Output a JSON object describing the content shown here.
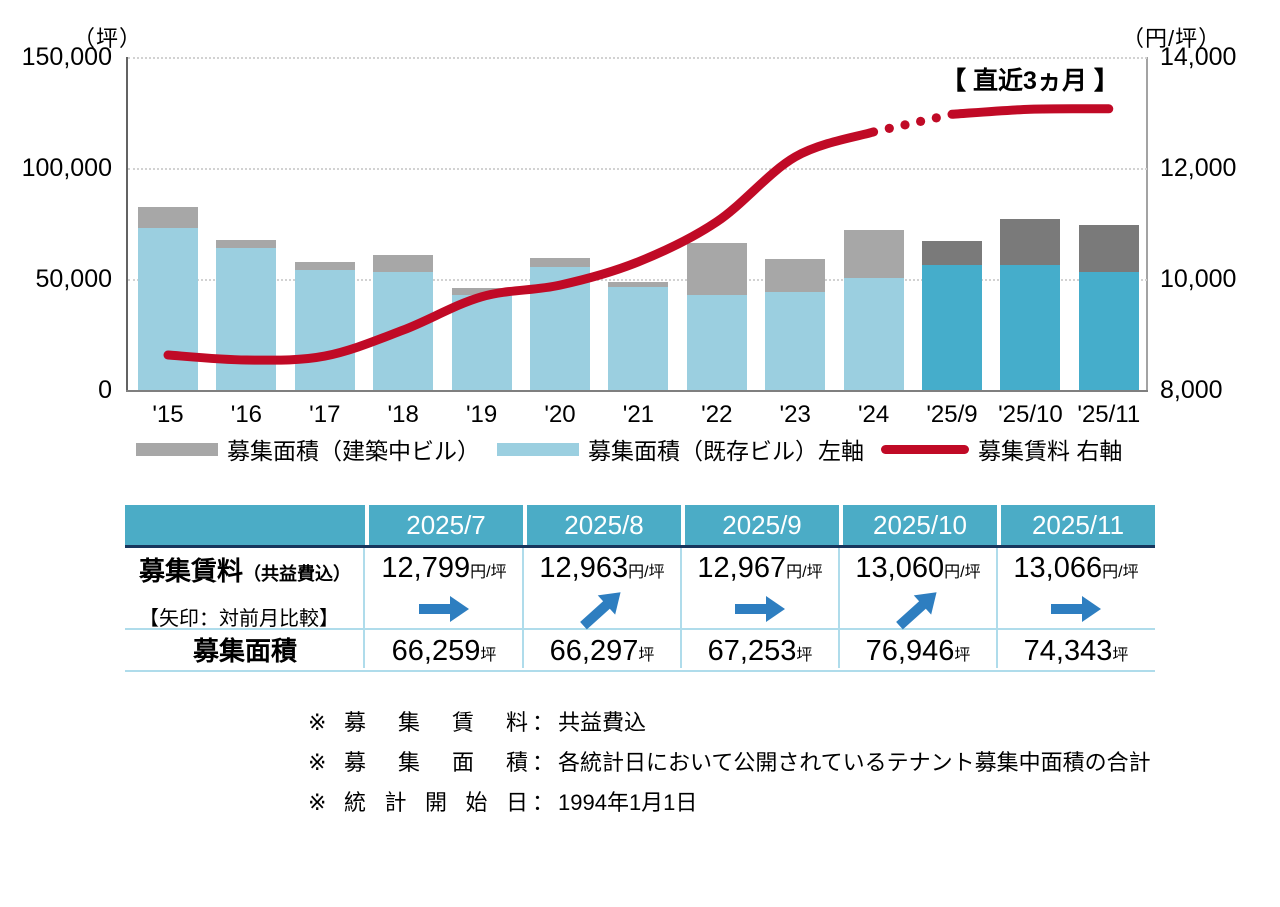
{
  "chart": {
    "left_axis": {
      "unit": "（坪）",
      "tick_labels": [
        "150,000",
        "100,000",
        "50,000",
        "0"
      ],
      "tick_values": [
        150000,
        100000,
        50000,
        0
      ]
    },
    "right_axis": {
      "unit": "（円/坪）",
      "tick_labels": [
        "14,000",
        "12,000",
        "10,000",
        "8,000"
      ],
      "tick_values": [
        14000,
        12000,
        10000,
        8000
      ]
    },
    "annotation": "【 直近3ヵ月 】",
    "legend": [
      {
        "label": "募集面積（建築中ビル）",
        "swatch": "gray-bar"
      },
      {
        "label": "募集面積（既存ビル）左軸",
        "swatch": "blue-bar"
      },
      {
        "label": "募集賃料 右軸",
        "swatch": "red-line"
      }
    ]
  },
  "chart_data": {
    "type": "bar+line",
    "categories": [
      "'15",
      "'16",
      "'17",
      "'18",
      "'19",
      "'20",
      "'21",
      "'22",
      "'23",
      "'24",
      "'25/9",
      "'25/10",
      "'25/11"
    ],
    "series": [
      {
        "name": "募集面積（既存ビル）",
        "type": "bar",
        "axis": "left",
        "values": [
          73000,
          64000,
          54000,
          53000,
          42800,
          55400,
          46400,
          42800,
          44100,
          50400,
          56300,
          56300,
          53100
        ]
      },
      {
        "name": "募集面積（建築中ビル）",
        "type": "bar",
        "axis": "left",
        "values": [
          9400,
          3600,
          3700,
          7800,
          3100,
          4100,
          2200,
          23400,
          14900,
          21700,
          10953,
          20646,
          21243
        ]
      },
      {
        "name": "募集賃料",
        "type": "line",
        "axis": "right",
        "values": [
          8630,
          8540,
          8610,
          9080,
          9680,
          9890,
          10310,
          11030,
          12200,
          12650,
          12967,
          13060,
          13066
        ],
        "dotted_segment_between": [
          "'24",
          "'25/9"
        ]
      }
    ],
    "left_ylim": [
      0,
      150000
    ],
    "right_ylim": [
      8000,
      14000
    ],
    "highlight_recent_categories": [
      "'25/9",
      "'25/10",
      "'25/11"
    ],
    "grid": "horizontal-dotted",
    "legend_position": "bottom",
    "title": "",
    "xlabel": "",
    "ylabel_left": "（坪）",
    "ylabel_right": "（円/坪）"
  },
  "table": {
    "columns": [
      "2025/7",
      "2025/8",
      "2025/9",
      "2025/10",
      "2025/11"
    ],
    "rent_row": {
      "label": "募集賃料",
      "label_suffix": "（共益費込）",
      "sublabel": "【矢印：対前月比較】",
      "values": [
        {
          "num": "12,799",
          "unit": "円/坪",
          "arrow": "right"
        },
        {
          "num": "12,963",
          "unit": "円/坪",
          "arrow": "up-right"
        },
        {
          "num": "12,967",
          "unit": "円/坪",
          "arrow": "right"
        },
        {
          "num": "13,060",
          "unit": "円/坪",
          "arrow": "up-right"
        },
        {
          "num": "13,066",
          "unit": "円/坪",
          "arrow": "right"
        }
      ]
    },
    "area_row": {
      "label": "募集面積",
      "values": [
        {
          "num": "66,259",
          "unit": "坪"
        },
        {
          "num": "66,297",
          "unit": "坪"
        },
        {
          "num": "67,253",
          "unit": "坪"
        },
        {
          "num": "76,946",
          "unit": "坪"
        },
        {
          "num": "74,343",
          "unit": "坪"
        }
      ]
    }
  },
  "notes": [
    {
      "mark": "※",
      "label": "募 集 賃 料",
      "colon": "：",
      "value": "共益費込"
    },
    {
      "mark": "※",
      "label": "募 集 面 積",
      "colon": "：",
      "value": "各統計日において公開されているテナント募集中面積の合計"
    },
    {
      "mark": "※",
      "label": "統 計 開 始 日",
      "colon": "：",
      "value": "1994年1月1日"
    }
  ],
  "colors": {
    "bar_existing_light": "#9bcfe0",
    "bar_existing_recent": "#45adcb",
    "bar_construction_light": "#a7a7a7",
    "bar_construction_recent": "#7a7a7a",
    "rent_line": "#c00a26",
    "table_header_bg": "#4bacc6",
    "table_header_text": "#ffffff",
    "table_border_light": "#afdceb",
    "table_header_underline": "#17365d",
    "arrow_blue": "#2e7ec0",
    "gridline": "#d2d2d2"
  }
}
